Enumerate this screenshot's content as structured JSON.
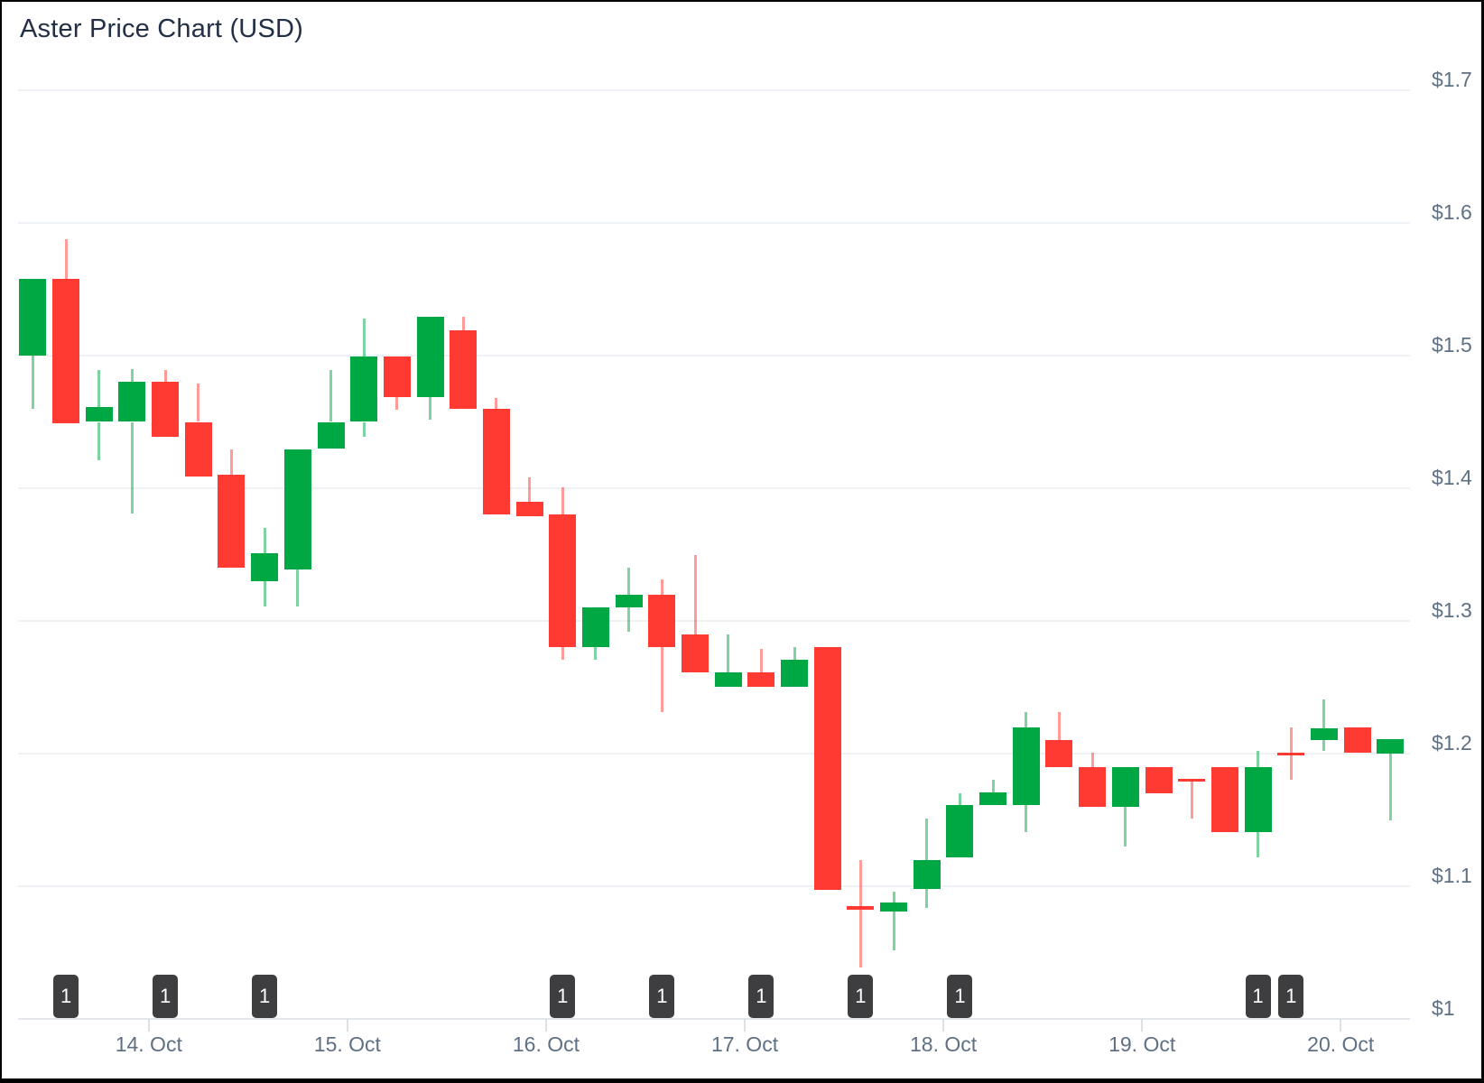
{
  "header": {
    "title": "Aster Price Chart (USD)"
  },
  "colors": {
    "up": "#00a843",
    "down": "#ff3a33",
    "grid": "#eef1f5",
    "axis": "#e3e7eb",
    "label_text": "#5f7084",
    "title_text": "#232f45",
    "badge_bg": "#3e3e40",
    "badge_text": "#ffffff"
  },
  "chart_data": {
    "type": "candlestick",
    "title": "Aster Price Chart (USD)",
    "currency": "USD",
    "interval": "4h",
    "grid": "horizontal-only",
    "y_axis": {
      "side": "right",
      "range": [
        1.0,
        1.7
      ],
      "tick_values": [
        1.7,
        1.6,
        1.5,
        1.4,
        1.3,
        1.2,
        1.1,
        1.0
      ],
      "tick_labels": [
        "$1.7",
        "$1.6",
        "$1.5",
        "$1.4",
        "$1.3",
        "$1.2",
        "$1.1",
        "$1"
      ]
    },
    "x_axis": {
      "tick_labels": [
        "14. Oct",
        "15. Oct",
        "16. Oct",
        "17. Oct",
        "18. Oct",
        "19. Oct",
        "20. Oct"
      ],
      "candles_per_day": 6,
      "first_tick_after_candle_index": 3
    },
    "candles": [
      {
        "o": 1.5,
        "h": 1.558,
        "l": 1.46,
        "c": 1.558
      },
      {
        "o": 1.558,
        "h": 1.588,
        "l": 1.449,
        "c": 1.449
      },
      {
        "o": 1.45,
        "h": 1.489,
        "l": 1.421,
        "c": 1.461
      },
      {
        "o": 1.45,
        "h": 1.49,
        "l": 1.381,
        "c": 1.48
      },
      {
        "o": 1.48,
        "h": 1.489,
        "l": 1.439,
        "c": 1.439
      },
      {
        "o": 1.45,
        "h": 1.479,
        "l": 1.409,
        "c": 1.409
      },
      {
        "o": 1.41,
        "h": 1.429,
        "l": 1.34,
        "c": 1.34
      },
      {
        "o": 1.33,
        "h": 1.37,
        "l": 1.311,
        "c": 1.351
      },
      {
        "o": 1.339,
        "h": 1.429,
        "l": 1.311,
        "c": 1.429
      },
      {
        "o": 1.43,
        "h": 1.489,
        "l": 1.43,
        "c": 1.45
      },
      {
        "o": 1.45,
        "h": 1.528,
        "l": 1.439,
        "c": 1.499
      },
      {
        "o": 1.499,
        "h": 1.499,
        "l": 1.459,
        "c": 1.469
      },
      {
        "o": 1.469,
        "h": 1.529,
        "l": 1.452,
        "c": 1.529
      },
      {
        "o": 1.519,
        "h": 1.529,
        "l": 1.46,
        "c": 1.46
      },
      {
        "o": 1.46,
        "h": 1.468,
        "l": 1.38,
        "c": 1.38
      },
      {
        "o": 1.39,
        "h": 1.408,
        "l": 1.379,
        "c": 1.379
      },
      {
        "o": 1.38,
        "h": 1.401,
        "l": 1.271,
        "c": 1.28
      },
      {
        "o": 1.28,
        "h": 1.31,
        "l": 1.271,
        "c": 1.31
      },
      {
        "o": 1.31,
        "h": 1.34,
        "l": 1.292,
        "c": 1.32
      },
      {
        "o": 1.32,
        "h": 1.331,
        "l": 1.231,
        "c": 1.28
      },
      {
        "o": 1.29,
        "h": 1.35,
        "l": 1.261,
        "c": 1.261
      },
      {
        "o": 1.25,
        "h": 1.29,
        "l": 1.25,
        "c": 1.261
      },
      {
        "o": 1.261,
        "h": 1.279,
        "l": 1.25,
        "c": 1.25
      },
      {
        "o": 1.25,
        "h": 1.28,
        "l": 1.25,
        "c": 1.271
      },
      {
        "o": 1.28,
        "h": 1.28,
        "l": 1.097,
        "c": 1.097
      },
      {
        "o": 1.085,
        "h": 1.12,
        "l": 1.039,
        "c": 1.082
      },
      {
        "o": 1.081,
        "h": 1.096,
        "l": 1.052,
        "c": 1.088
      },
      {
        "o": 1.098,
        "h": 1.151,
        "l": 1.084,
        "c": 1.12
      },
      {
        "o": 1.122,
        "h": 1.17,
        "l": 1.122,
        "c": 1.161
      },
      {
        "o": 1.161,
        "h": 1.18,
        "l": 1.161,
        "c": 1.171
      },
      {
        "o": 1.161,
        "h": 1.231,
        "l": 1.141,
        "c": 1.22
      },
      {
        "o": 1.21,
        "h": 1.231,
        "l": 1.19,
        "c": 1.19
      },
      {
        "o": 1.19,
        "h": 1.201,
        "l": 1.16,
        "c": 1.16
      },
      {
        "o": 1.16,
        "h": 1.19,
        "l": 1.13,
        "c": 1.19
      },
      {
        "o": 1.19,
        "h": 1.19,
        "l": 1.17,
        "c": 1.17
      },
      {
        "o": 1.181,
        "h": 1.181,
        "l": 1.151,
        "c": 1.179
      },
      {
        "o": 1.19,
        "h": 1.19,
        "l": 1.141,
        "c": 1.141
      },
      {
        "o": 1.141,
        "h": 1.202,
        "l": 1.122,
        "c": 1.19
      },
      {
        "o": 1.201,
        "h": 1.22,
        "l": 1.18,
        "c": 1.199
      },
      {
        "o": 1.21,
        "h": 1.241,
        "l": 1.202,
        "c": 1.219
      },
      {
        "o": 1.22,
        "h": 1.22,
        "l": 1.201,
        "c": 1.201
      },
      {
        "o": 1.2,
        "h": 1.211,
        "l": 1.15,
        "c": 1.211
      }
    ],
    "markers": [
      {
        "candle": 1,
        "label": "1"
      },
      {
        "candle": 4,
        "label": "1"
      },
      {
        "candle": 7,
        "label": "1"
      },
      {
        "candle": 16,
        "label": "1"
      },
      {
        "candle": 19,
        "label": "1"
      },
      {
        "candle": 22,
        "label": "1"
      },
      {
        "candle": 25,
        "label": "1"
      },
      {
        "candle": 28,
        "label": "1"
      },
      {
        "candle": 37,
        "label": "1"
      },
      {
        "candle": 38,
        "label": "1"
      }
    ]
  }
}
